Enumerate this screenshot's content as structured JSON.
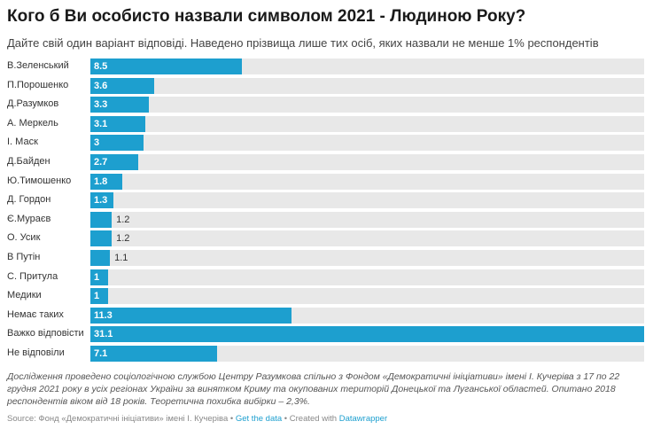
{
  "title": "Кого б Ви особисто назвали символом 2021 - Людиною Року?",
  "subtitle": "Дайте свій один варіант відповіді. Наведено прізвища лише тих осіб, яких назвали не менше 1% респондентів",
  "colors": {
    "bar": "#1d9fcf",
    "bar_background": "#e8e8e8"
  },
  "chart_data": {
    "type": "bar",
    "orientation": "horizontal",
    "xlim": [
      0,
      31.1
    ],
    "categories": [
      "В.Зеленський",
      "П.Порошенко",
      "Д.Разумков",
      "А. Меркель",
      "І. Маск",
      "Д.Байден",
      "Ю.Тимошенко",
      "Д. Гордон",
      "Є.Мураєв",
      "О. Усик",
      "В Путін",
      "С. Притула",
      "Медики",
      "Немає таких",
      "Важко відповісти",
      "Не відповіли"
    ],
    "values": [
      8.5,
      3.6,
      3.3,
      3.1,
      3,
      2.7,
      1.8,
      1.3,
      1.2,
      1.2,
      1.1,
      1,
      1,
      11.3,
      31.1,
      7.1
    ],
    "value_labels": [
      "8.5",
      "3.6",
      "3.3",
      "3.1",
      "3",
      "2.7",
      "1.8",
      "1.3",
      "1.2",
      "1.2",
      "1.1",
      "1",
      "1",
      "11.3",
      "31.1",
      "7.1"
    ]
  },
  "notes": "Дослідження проведено соціологічною службою Центру Разумкова спільно з Фондом «Демократичні ініціативи» імені І. Кучеріва з 17 по 22 грудня 2021 року в усіх регіонах України за винятком Криму та окупованих територій Донецької та Луганської областей. Опитано 2018 респондентів віком від 18 років. Теоретична похибка вибірки – 2,3%.",
  "footer": {
    "source": "Source: Фонд «Демократичні ініціативи» імені І. Кучеріва",
    "sep1": " • ",
    "get_data": "Get the data",
    "sep2": " • Created with ",
    "datawrapper": "Datawrapper"
  }
}
